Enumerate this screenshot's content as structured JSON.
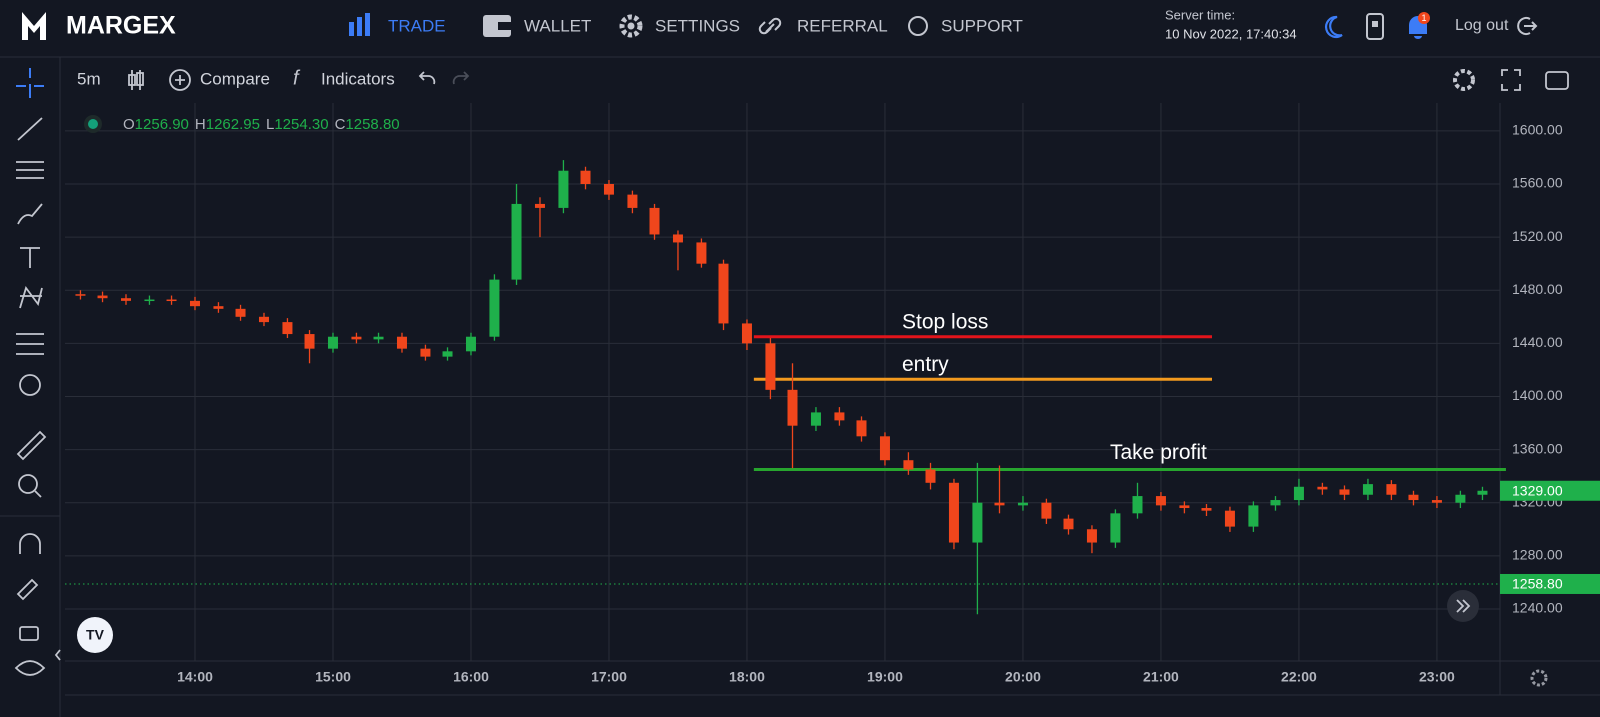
{
  "header": {
    "logo": "MARGEX",
    "nav": [
      "TRADE",
      "WALLET",
      "SETTINGS",
      "REFERRAL",
      "SUPPORT"
    ],
    "server_time_label": "Server time:",
    "server_time": "10 Nov 2022, 17:40:34",
    "notifications": "1",
    "logout": "Log out"
  },
  "toolbar": {
    "interval": "5m",
    "compare": "Compare",
    "indicators": "Indicators"
  },
  "chart_data": {
    "type": "candlestick",
    "legend": [
      {
        "key": "O",
        "value": 1256.9,
        "label": "1256.90"
      },
      {
        "key": "H",
        "value": 1262.95,
        "label": "1262.95"
      },
      {
        "key": "L",
        "value": 1254.3,
        "label": "1254.30"
      },
      {
        "key": "C",
        "value": 1258.8,
        "label": "1258.80"
      }
    ],
    "up_color": "#1fb04b",
    "down_color": "#f0461c",
    "x": [
      13.17,
      13.33,
      13.5,
      13.67,
      13.83,
      14,
      14.17,
      14.33,
      14.5,
      14.67,
      14.83,
      15,
      15.17,
      15.33,
      15.5,
      15.67,
      15.83,
      16,
      16.17,
      16.33,
      16.5,
      16.67,
      16.83,
      17,
      17.17,
      17.33,
      17.5,
      17.67,
      17.83,
      18,
      18.17,
      18.33,
      18.5,
      18.67,
      18.83,
      19,
      19.17,
      19.33,
      19.5,
      19.67,
      19.83,
      20,
      20.17,
      20.33,
      20.5,
      20.67,
      20.83,
      21,
      21.17,
      21.33,
      21.5,
      21.67,
      21.83,
      22,
      22.17,
      22.33,
      22.5,
      22.67,
      22.83,
      23,
      23.17,
      23.33
    ],
    "open": [
      1477,
      1476,
      1474,
      1472,
      1473,
      1472,
      1468,
      1466,
      1460,
      1456,
      1447,
      1436,
      1445,
      1443,
      1445,
      1436,
      1430,
      1434,
      1445,
      1488,
      1545,
      1542,
      1570,
      1560,
      1552,
      1542,
      1522,
      1516,
      1500,
      1455,
      1440,
      1405,
      1378,
      1388,
      1382,
      1370,
      1352,
      1345,
      1335,
      1290,
      1320,
      1318,
      1320,
      1308,
      1300,
      1290,
      1312,
      1325,
      1318,
      1316,
      1314,
      1302,
      1318,
      1322,
      1332,
      1330,
      1326,
      1334,
      1326,
      1322,
      1320,
      1326
    ],
    "high": [
      1480,
      1479,
      1477,
      1476,
      1476,
      1475,
      1471,
      1469,
      1463,
      1459,
      1450,
      1448,
      1448,
      1448,
      1448,
      1439,
      1437,
      1448,
      1492,
      1560,
      1550,
      1578,
      1573,
      1563,
      1555,
      1545,
      1525,
      1519,
      1503,
      1458,
      1444,
      1425,
      1392,
      1392,
      1385,
      1373,
      1358,
      1350,
      1338,
      1350,
      1348,
      1325,
      1323,
      1311,
      1303,
      1315,
      1335,
      1328,
      1321,
      1319,
      1317,
      1321,
      1325,
      1338,
      1335,
      1333,
      1338,
      1337,
      1329,
      1325,
      1329,
      1332
    ],
    "low": [
      1473,
      1471,
      1469,
      1469,
      1469,
      1465,
      1463,
      1457,
      1453,
      1444,
      1425,
      1433,
      1440,
      1440,
      1433,
      1427,
      1427,
      1431,
      1442,
      1484,
      1520,
      1538,
      1556,
      1548,
      1538,
      1518,
      1495,
      1497,
      1450,
      1435,
      1398,
      1346,
      1374,
      1378,
      1366,
      1348,
      1341,
      1330,
      1285,
      1236,
      1312,
      1314,
      1304,
      1296,
      1282,
      1286,
      1308,
      1314,
      1312,
      1310,
      1298,
      1298,
      1314,
      1318,
      1326,
      1322,
      1322,
      1322,
      1318,
      1316,
      1316,
      1322
    ],
    "close": [
      1476,
      1474,
      1472,
      1473,
      1472,
      1468,
      1466,
      1460,
      1456,
      1447,
      1436,
      1445,
      1443,
      1445,
      1436,
      1430,
      1434,
      1445,
      1488,
      1545,
      1542,
      1570,
      1560,
      1552,
      1542,
      1522,
      1516,
      1500,
      1455,
      1440,
      1405,
      1378,
      1388,
      1382,
      1370,
      1352,
      1345,
      1335,
      1290,
      1320,
      1318,
      1320,
      1308,
      1300,
      1290,
      1312,
      1325,
      1318,
      1316,
      1314,
      1302,
      1318,
      1322,
      1332,
      1330,
      1326,
      1334,
      1326,
      1322,
      1320,
      1326,
      1329
    ],
    "xlim": [
      13.058,
      23.457
    ],
    "ylim": [
      1200.8,
      1621
    ],
    "xticks": [
      {
        "value": 14,
        "label": "14:00"
      },
      {
        "value": 15,
        "label": "15:00"
      },
      {
        "value": 16,
        "label": "16:00"
      },
      {
        "value": 17,
        "label": "17:00"
      },
      {
        "value": 18,
        "label": "18:00"
      },
      {
        "value": 19,
        "label": "19:00"
      },
      {
        "value": 20,
        "label": "20:00"
      },
      {
        "value": 21,
        "label": "21:00"
      },
      {
        "value": 22,
        "label": "22:00"
      },
      {
        "value": 23,
        "label": "23:00"
      }
    ],
    "yticks": [
      {
        "value": 1240,
        "label": "1240.00"
      },
      {
        "value": 1280,
        "label": "1280.00"
      },
      {
        "value": 1320,
        "label": "1320.00"
      },
      {
        "value": 1360,
        "label": "1360.00"
      },
      {
        "value": 1400,
        "label": "1400.00"
      },
      {
        "value": 1440,
        "label": "1440.00"
      },
      {
        "value": 1480,
        "label": "1480.00"
      },
      {
        "value": 1520,
        "label": "1520.00"
      },
      {
        "value": 1560,
        "label": "1560.00"
      },
      {
        "value": 1600,
        "label": "1600.00"
      }
    ],
    "grid": true,
    "levels": [
      {
        "label": "Stop loss",
        "value": 1445,
        "color": "#e3141b",
        "x": [
          18.05,
          21.37
        ]
      },
      {
        "label": "entry",
        "value": 1413,
        "color": "#f39a1e",
        "x": [
          18.05,
          21.37
        ]
      },
      {
        "label": "Take profit",
        "value": 1345,
        "color": "#27a52e",
        "x": [
          18.05,
          23.5
        ]
      }
    ],
    "price_tags": [
      {
        "value": 1329,
        "label": "1329.00",
        "color": "#1fb04b",
        "dotted": false
      },
      {
        "value": 1258.8,
        "label": "1258.80",
        "color": "#1fb04b",
        "dotted": true
      }
    ]
  }
}
